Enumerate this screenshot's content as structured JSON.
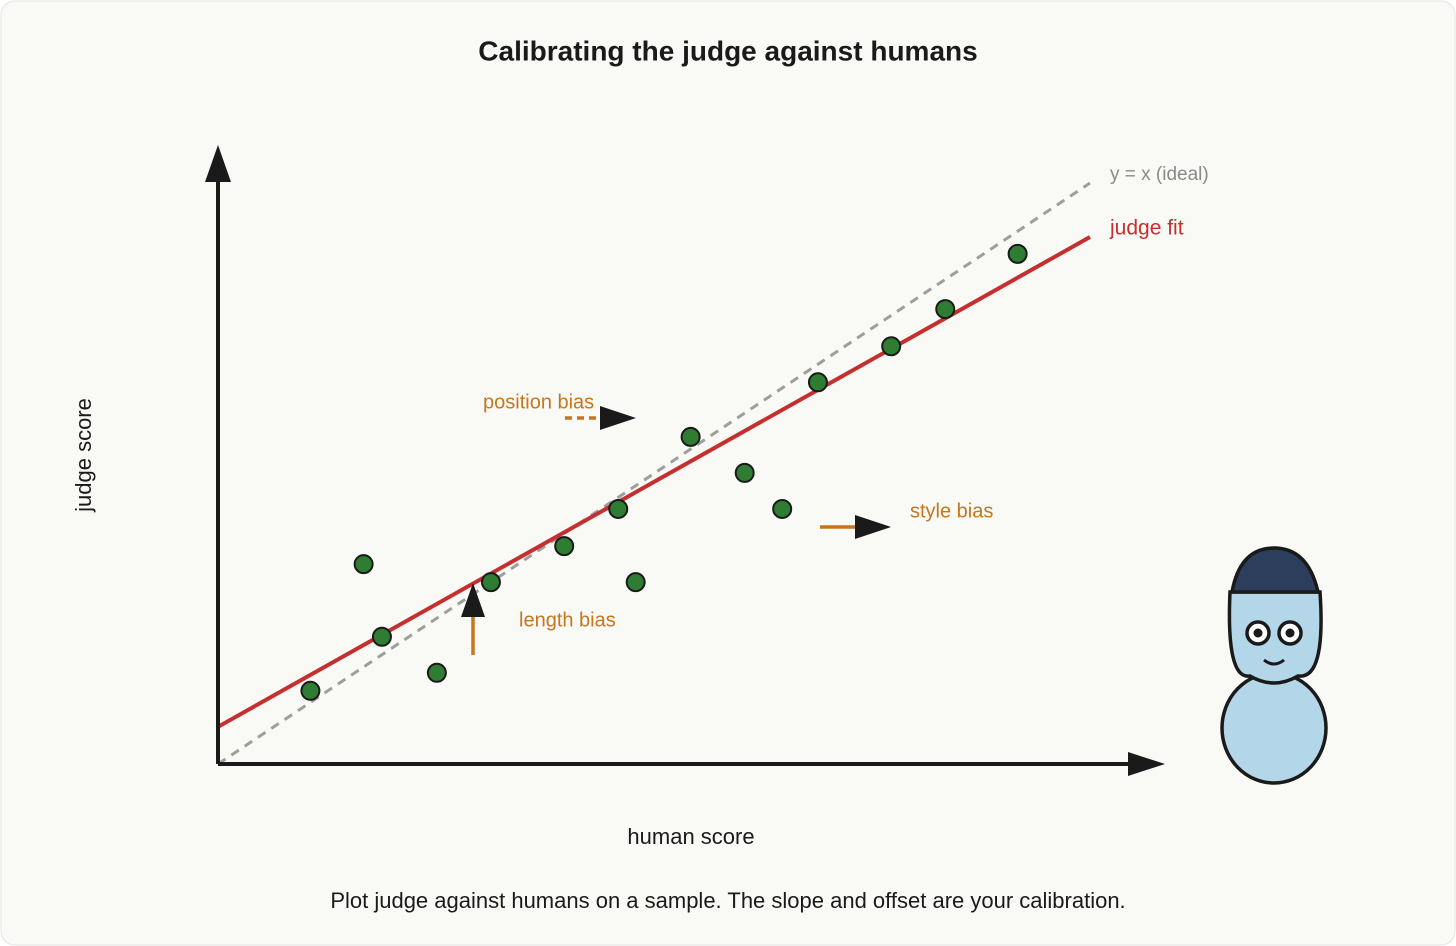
{
  "chart_data": {
    "type": "scatter",
    "title": "Calibrating the judge against humans",
    "x_label": "human score",
    "y_label": "judge score",
    "caption": "Plot judge against humans on a sample. The slope and offset are your calibration.",
    "xlim": [
      0,
      11
    ],
    "ylim": [
      0,
      11
    ],
    "series": [
      {
        "color": "#2e7d32",
        "x": [
          1.06,
          1.67,
          1.88,
          2.51,
          3.13,
          3.97,
          4.59,
          4.79,
          5.42,
          6.04,
          6.47,
          6.88,
          7.72,
          8.34,
          9.17
        ],
        "values": [
          1.26,
          3.44,
          2.19,
          1.57,
          3.13,
          3.75,
          4.39,
          3.13,
          5.63,
          5.01,
          4.39,
          6.57,
          7.19,
          7.83,
          8.78
        ]
      }
    ],
    "lines": [
      {
        "name": "y = x (ideal)",
        "color": "#9e9e9e",
        "dashed": true,
        "x": [
          0,
          10
        ],
        "y": [
          0,
          10
        ]
      },
      {
        "name": "judge fit",
        "color": "#c62f2f",
        "dashed": false,
        "x": [
          0,
          10
        ],
        "y": [
          0.64,
          9.07
        ]
      }
    ],
    "annotations": [
      "position bias",
      "length bias",
      "style bias"
    ],
    "annotation_color": "#c7761c"
  }
}
